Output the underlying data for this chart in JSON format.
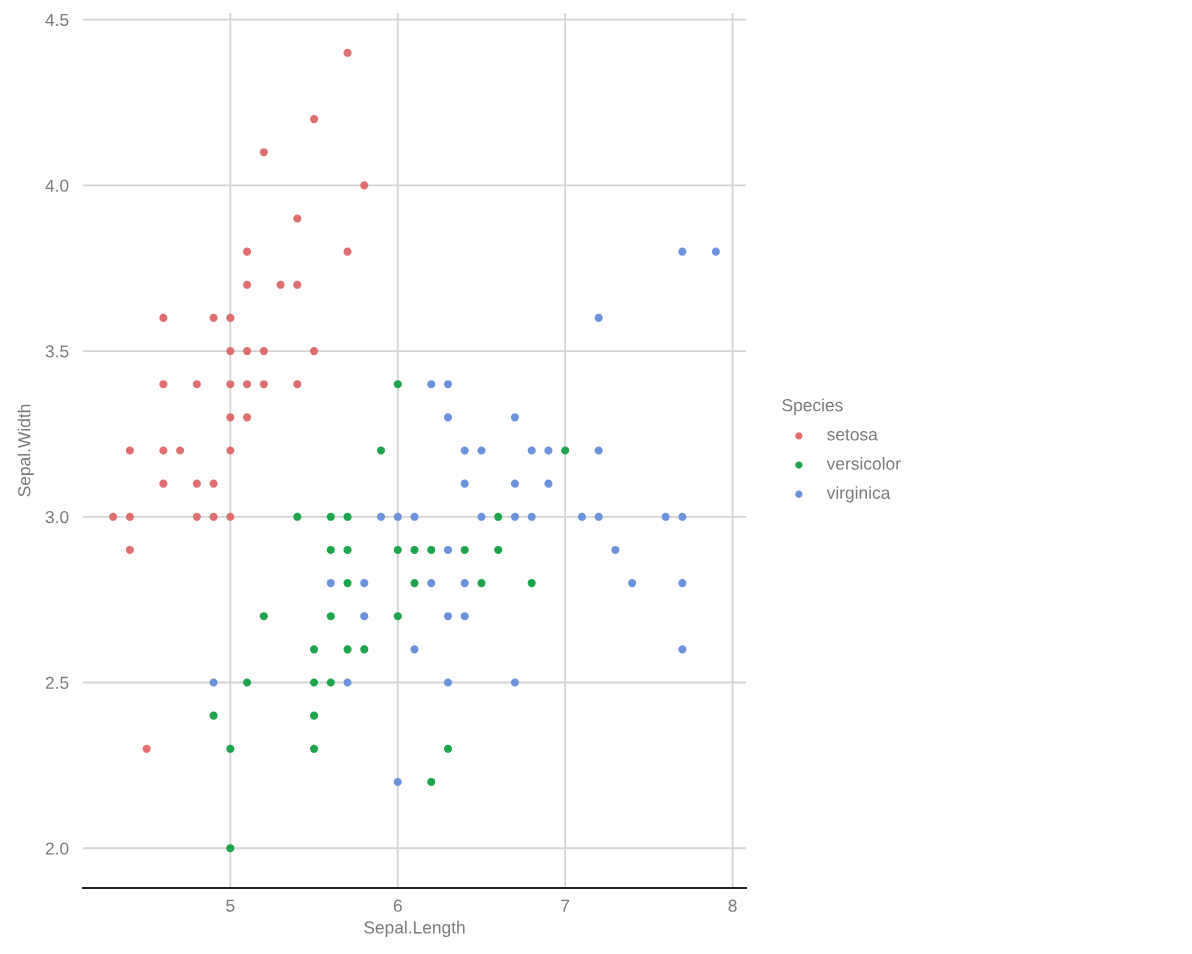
{
  "chart_data": {
    "type": "scatter",
    "xlabel": "Sepal.Length",
    "ylabel": "Sepal.Width",
    "legend_title": "Species",
    "legend": "right",
    "grid": true,
    "marker": "circle",
    "xlim": [
      4.12,
      8.08
    ],
    "ylim": [
      1.88,
      4.52
    ],
    "xticks": [
      5,
      6,
      7,
      8
    ],
    "yticks": [
      {
        "value": 2,
        "label": "2.0"
      },
      2.5,
      {
        "value": 3,
        "label": "3.0"
      },
      3.5,
      {
        "value": 4,
        "label": "4.0"
      },
      4.5
    ],
    "series": [
      {
        "name": "setosa",
        "color": "#e06e6e",
        "x": [
          5.1,
          4.9,
          4.7,
          4.6,
          5.0,
          5.4,
          4.6,
          5.0,
          4.4,
          4.9,
          5.4,
          4.8,
          4.8,
          4.3,
          5.8,
          5.7,
          5.7,
          5.1,
          5.4,
          5.1,
          4.6,
          5.1,
          5.0,
          5.2,
          5.2,
          5.2,
          5.5,
          5.0,
          5.5,
          4.9,
          4.4,
          5.1,
          5.0,
          4.5,
          4.4,
          4.6,
          5.3,
          5.0,
          4.8
        ],
        "values": [
          3.5,
          3.0,
          3.2,
          3.1,
          3.6,
          3.9,
          3.4,
          3.4,
          2.9,
          3.1,
          3.7,
          3.4,
          3.0,
          3.0,
          4.0,
          4.4,
          3.8,
          3.8,
          3.4,
          3.7,
          3.6,
          3.3,
          3.0,
          3.5,
          3.4,
          4.1,
          4.2,
          3.2,
          3.5,
          3.6,
          3.0,
          3.4,
          3.5,
          2.3,
          3.2,
          3.2,
          3.7,
          3.3,
          3.1
        ]
      },
      {
        "name": "versicolor",
        "color": "#1ca54b",
        "x": [
          7.0,
          5.5,
          6.5,
          5.7,
          4.9,
          6.6,
          5.2,
          5.0,
          6.1,
          5.6,
          5.6,
          6.2,
          5.6,
          5.9,
          6.1,
          6.4,
          6.6,
          6.8,
          6.0,
          5.7,
          5.5,
          6.0,
          5.4,
          6.0,
          6.3,
          5.5,
          5.5,
          5.8,
          5.0,
          5.6,
          5.7,
          5.7,
          6.2,
          5.1
        ],
        "values": [
          3.2,
          2.3,
          2.8,
          2.8,
          2.4,
          2.9,
          2.7,
          2.0,
          2.9,
          2.9,
          3.0,
          2.2,
          2.5,
          3.2,
          2.8,
          2.9,
          3.0,
          2.8,
          2.9,
          2.6,
          2.4,
          2.7,
          3.0,
          3.4,
          2.3,
          2.5,
          2.6,
          2.6,
          2.3,
          2.7,
          3.0,
          2.9,
          2.9,
          2.5
        ]
      },
      {
        "name": "virginica",
        "color": "#6b92dd",
        "x": [
          6.3,
          5.8,
          7.1,
          6.3,
          6.5,
          7.6,
          4.9,
          7.3,
          6.7,
          7.2,
          6.5,
          6.4,
          6.8,
          5.7,
          5.8,
          6.4,
          7.7,
          7.7,
          6.0,
          6.9,
          5.6,
          7.7,
          6.3,
          6.7,
          7.2,
          6.2,
          6.1,
          6.4,
          7.2,
          7.4,
          7.9,
          6.1,
          7.7,
          6.3,
          6.4,
          6.0,
          6.9,
          6.7,
          6.8,
          6.7,
          6.3,
          6.2,
          5.9
        ],
        "values": [
          3.3,
          2.7,
          3.0,
          2.9,
          3.0,
          3.0,
          2.5,
          2.9,
          2.5,
          3.6,
          3.2,
          2.7,
          3.0,
          2.5,
          2.8,
          3.2,
          3.8,
          2.6,
          2.2,
          3.2,
          2.8,
          2.8,
          2.7,
          3.3,
          3.2,
          2.8,
          3.0,
          2.8,
          3.0,
          2.8,
          3.8,
          2.6,
          3.0,
          3.4,
          3.1,
          3.0,
          3.1,
          3.1,
          3.2,
          3.0,
          2.5,
          3.4,
          3.0
        ]
      }
    ]
  }
}
